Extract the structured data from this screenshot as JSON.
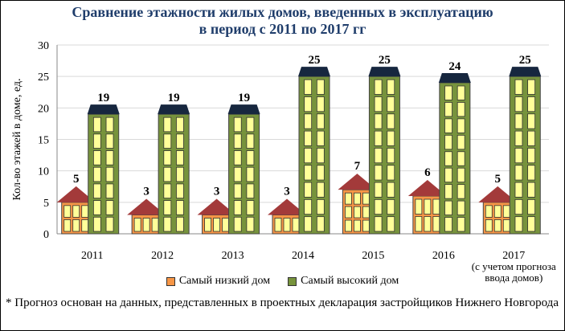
{
  "chart_data": {
    "type": "bar",
    "title": "Сравнение этажности жилых домов, введенных в эксплуатацию\nв период с 2011 по 2017 гг",
    "ylabel": "Кол-во этажей в доме, ед.",
    "xlabel": "",
    "ylim": [
      0,
      30
    ],
    "yticks": [
      0,
      5,
      10,
      15,
      20,
      25,
      30
    ],
    "grid": true,
    "legend_position": "bottom",
    "categories": [
      "2011",
      "2012",
      "2013",
      "2014",
      "2015",
      "2016",
      "2017"
    ],
    "category_notes": [
      "",
      "",
      "",
      "",
      "",
      "",
      "(с учетом прогноза ввода домов)"
    ],
    "series": [
      {
        "name": "Самый низкий дом",
        "values": [
          5,
          3,
          3,
          3,
          7,
          6,
          5
        ],
        "color": "#f79646"
      },
      {
        "name": "Самый высокий дом",
        "values": [
          19,
          19,
          19,
          25,
          25,
          24,
          25
        ],
        "color": "#77933c"
      }
    ]
  },
  "footnote": "* Прогноз основан на данных, представленных в проектных декларация застройщиков Нижнего Новгорода",
  "colors": {
    "low_roof": "#a33a3a",
    "high_roof": "#17273f",
    "window": "#ffff99",
    "grid": "#d9d9d9",
    "title": "#1f3d6b"
  }
}
